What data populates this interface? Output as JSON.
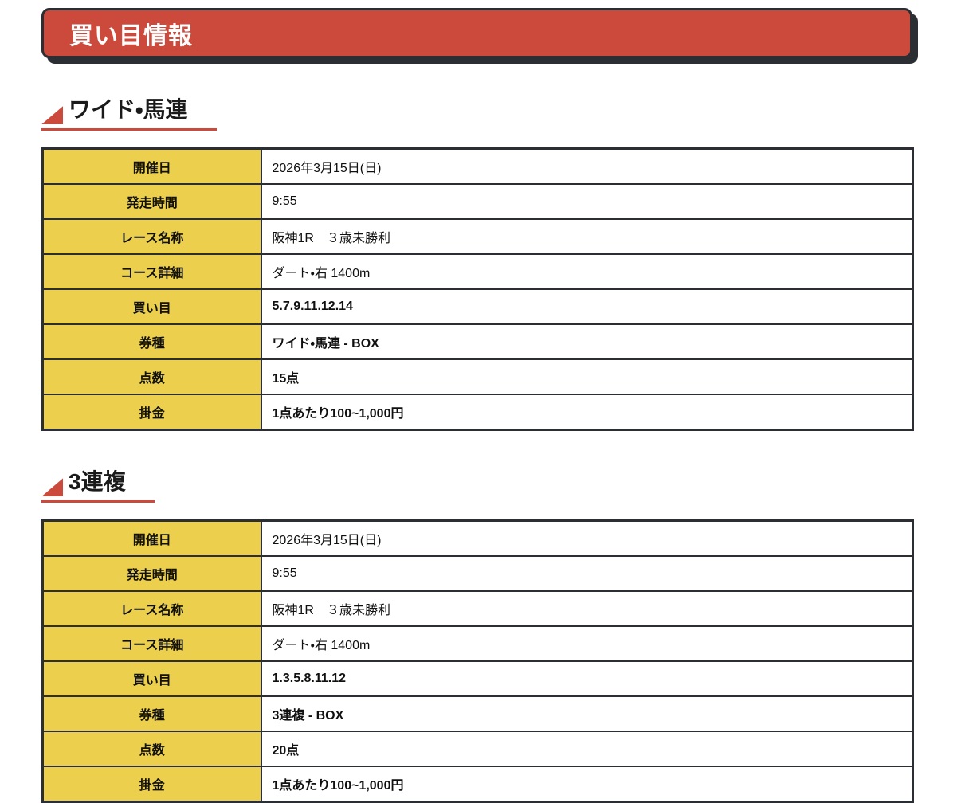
{
  "banner": {
    "title": "買い目情報"
  },
  "colors": {
    "accent_red": "#cc4a3c",
    "label_yellow": "#ebcf4d",
    "border_dark": "#2b2f34"
  },
  "sections": [
    {
      "heading": "ワイド・馬連",
      "rows": [
        {
          "label": "開催日",
          "value": "2026年3月15日(日)",
          "bold": false
        },
        {
          "label": "発走時間",
          "value": "9:55",
          "bold": false
        },
        {
          "label": "レース名称",
          "value": "阪神1R　３歳未勝利",
          "bold": false
        },
        {
          "label": "コース詳細",
          "value": "ダート・右 1400m",
          "bold": false
        },
        {
          "label": "買い目",
          "value": "5.7.9.11.12.14",
          "bold": true
        },
        {
          "label": "券種",
          "value": "ワイド・馬連 - BOX",
          "bold": true
        },
        {
          "label": "点数",
          "value": "15点",
          "bold": true
        },
        {
          "label": "掛金",
          "value": "1点あたり100~1,000円",
          "bold": true
        }
      ]
    },
    {
      "heading": "3連複",
      "rows": [
        {
          "label": "開催日",
          "value": "2026年3月15日(日)",
          "bold": false
        },
        {
          "label": "発走時間",
          "value": "9:55",
          "bold": false
        },
        {
          "label": "レース名称",
          "value": "阪神1R　３歳未勝利",
          "bold": false
        },
        {
          "label": "コース詳細",
          "value": "ダート・右 1400m",
          "bold": false
        },
        {
          "label": "買い目",
          "value": "1.3.5.8.11.12",
          "bold": true
        },
        {
          "label": "券種",
          "value": "3連複 - BOX",
          "bold": true
        },
        {
          "label": "点数",
          "value": "20点",
          "bold": true
        },
        {
          "label": "掛金",
          "value": "1点あたり100~1,000円",
          "bold": true
        }
      ]
    }
  ]
}
